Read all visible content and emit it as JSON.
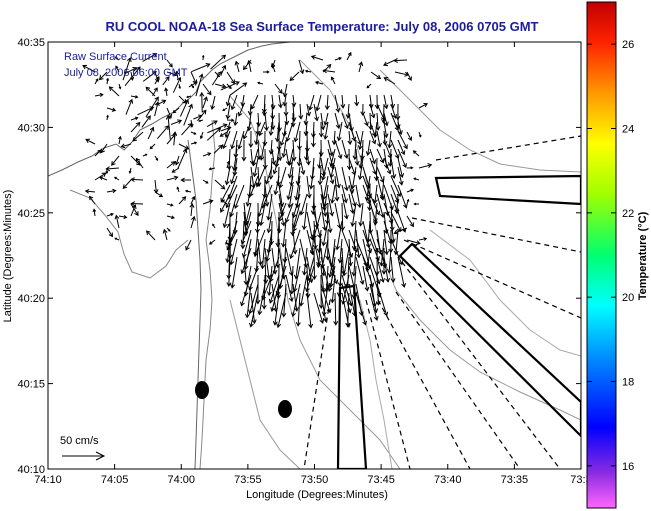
{
  "title": "RU COOL  NOAA-18  Sea Surface Temperature:  July 08, 2006 0705 GMT",
  "overlay": {
    "line1": "Raw Surface Current",
    "line2": "July 08, 2006 06:00 GMT"
  },
  "axes": {
    "xlabel": "Longitude (Degrees:Minutes)",
    "ylabel": "Latitude (Degrees:Minutes)",
    "xticks": [
      "74:10",
      "74:05",
      "74:00",
      "73:55",
      "73:50",
      "73:45",
      "73:40",
      "73:35",
      "73:3"
    ],
    "yticks": [
      "40:35",
      "40:30",
      "40:25",
      "40:20",
      "40:15",
      "40:10"
    ]
  },
  "colorbar": {
    "label": "Temperature (°C)",
    "ticks": [
      "26",
      "24",
      "22",
      "20",
      "18",
      "16"
    ],
    "range": [
      15,
      27
    ]
  },
  "scale_arrow": {
    "label": "50 cm/s"
  },
  "colors": {
    "title": "#1c1c9c",
    "vectors": "#000000",
    "land": "#ffffff"
  }
}
